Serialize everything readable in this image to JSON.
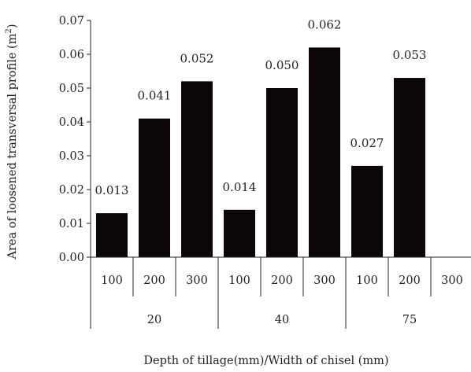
{
  "chart_data": {
    "type": "bar",
    "ylabel_text": "Area of loosened transversal profile (m",
    "ylabel_sup": "2",
    "ylabel_close": ")",
    "xlabel": "Depth of tillage(mm)/Width of chisel (mm)",
    "ylim": [
      0,
      0.07
    ],
    "yticks": [
      "0.00",
      "0.01",
      "0.02",
      "0.03",
      "0.04",
      "0.05",
      "0.06",
      "0.07"
    ],
    "groups": [
      "20",
      "40",
      "75"
    ],
    "categories": [
      "100",
      "200",
      "300",
      "100",
      "200",
      "300",
      "100",
      "200",
      "300"
    ],
    "values": [
      0.013,
      0.041,
      0.052,
      0.014,
      0.05,
      0.062,
      0.027,
      0.053,
      null
    ],
    "value_labels": [
      "0.013",
      "0.041",
      "0.052",
      "0.014",
      "0.050",
      "0.062",
      "0.027",
      "0.053",
      ""
    ],
    "bar_color": "#0d0606",
    "grid": false,
    "legend": "none"
  }
}
